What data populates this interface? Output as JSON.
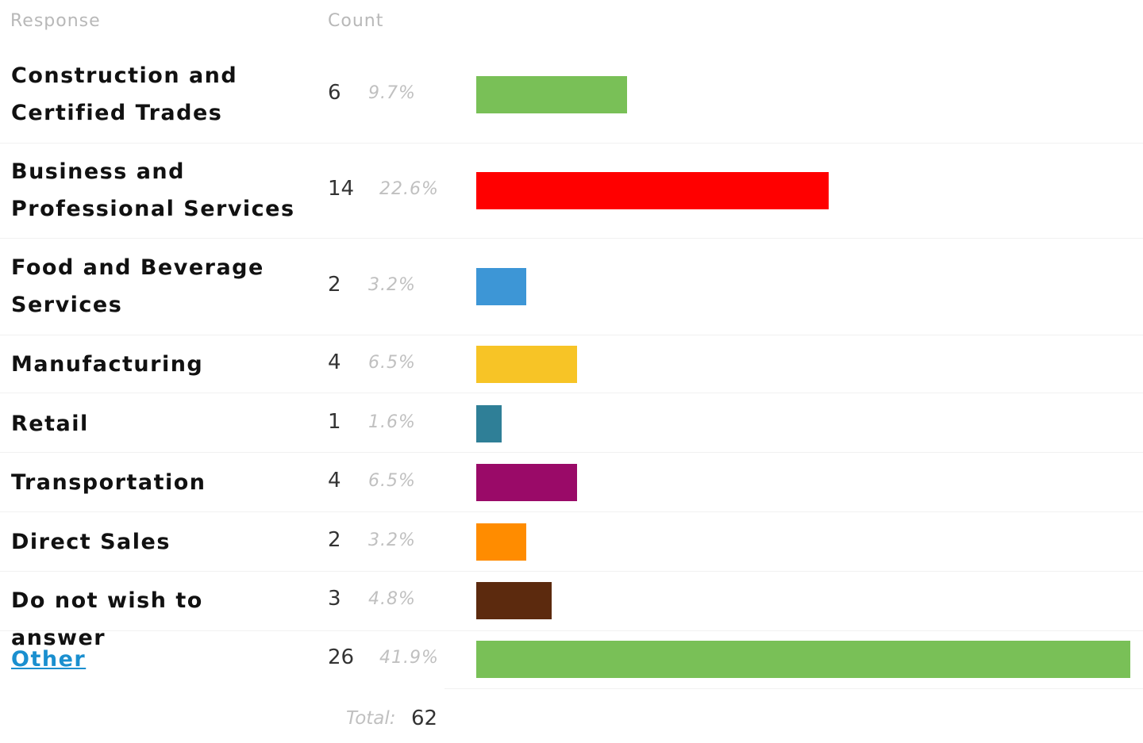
{
  "header": {
    "response": "Response",
    "count": "Count"
  },
  "rows": [
    {
      "label": "Construction and Certified Trades",
      "lines": [
        "Construction and",
        "Certified Trades"
      ],
      "count": "6",
      "percent": "9.7%",
      "color": "#79c057"
    },
    {
      "label": "Business and Professional Services",
      "lines": [
        "Business and",
        "Professional Services"
      ],
      "count": "14",
      "percent": "22.6%",
      "color": "#ff0000"
    },
    {
      "label": "Food and Beverage Services",
      "lines": [
        "Food and Beverage",
        "Services"
      ],
      "count": "2",
      "percent": "3.2%",
      "color": "#3d96d6"
    },
    {
      "label": "Manufacturing",
      "lines": [
        "Manufacturing"
      ],
      "count": "4",
      "percent": "6.5%",
      "color": "#f7c426"
    },
    {
      "label": "Retail",
      "lines": [
        "Retail"
      ],
      "count": "1",
      "percent": "1.6%",
      "color": "#2f7f97"
    },
    {
      "label": "Transportation",
      "lines": [
        "Transportation"
      ],
      "count": "4",
      "percent": "6.5%",
      "color": "#9a0a68"
    },
    {
      "label": "Direct Sales",
      "lines": [
        "Direct Sales"
      ],
      "count": "2",
      "percent": "3.2%",
      "color": "#ff8c00"
    },
    {
      "label": "Do not wish to answer",
      "lines": [
        "Do not wish to answer"
      ],
      "count": "3",
      "percent": "4.8%",
      "color": "#5c2a0e"
    },
    {
      "label": "Other",
      "lines": [
        "Other"
      ],
      "count": "26",
      "percent": "41.9%",
      "color": "#79c057",
      "link": true
    }
  ],
  "total": {
    "label": "Total:",
    "value": "62"
  },
  "chart_data": {
    "type": "bar",
    "orientation": "horizontal",
    "categories": [
      "Construction and Certified Trades",
      "Business and Professional Services",
      "Food and Beverage Services",
      "Manufacturing",
      "Retail",
      "Transportation",
      "Direct Sales",
      "Do not wish to answer",
      "Other"
    ],
    "values": [
      6,
      14,
      2,
      4,
      1,
      4,
      2,
      3,
      26
    ],
    "percents": [
      9.7,
      22.6,
      3.2,
      6.5,
      1.6,
      6.5,
      3.2,
      4.8,
      41.9
    ],
    "colors": [
      "#79c057",
      "#ff0000",
      "#3d96d6",
      "#f7c426",
      "#2f7f97",
      "#9a0a68",
      "#ff8c00",
      "#5c2a0e",
      "#79c057"
    ],
    "total": 62
  }
}
